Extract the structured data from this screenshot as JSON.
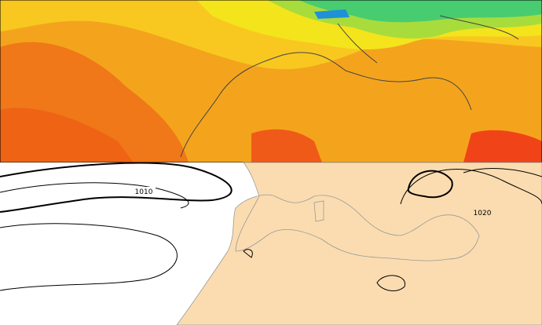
{
  "isobar_labels": [
    "1010",
    "1020"
  ]
}
